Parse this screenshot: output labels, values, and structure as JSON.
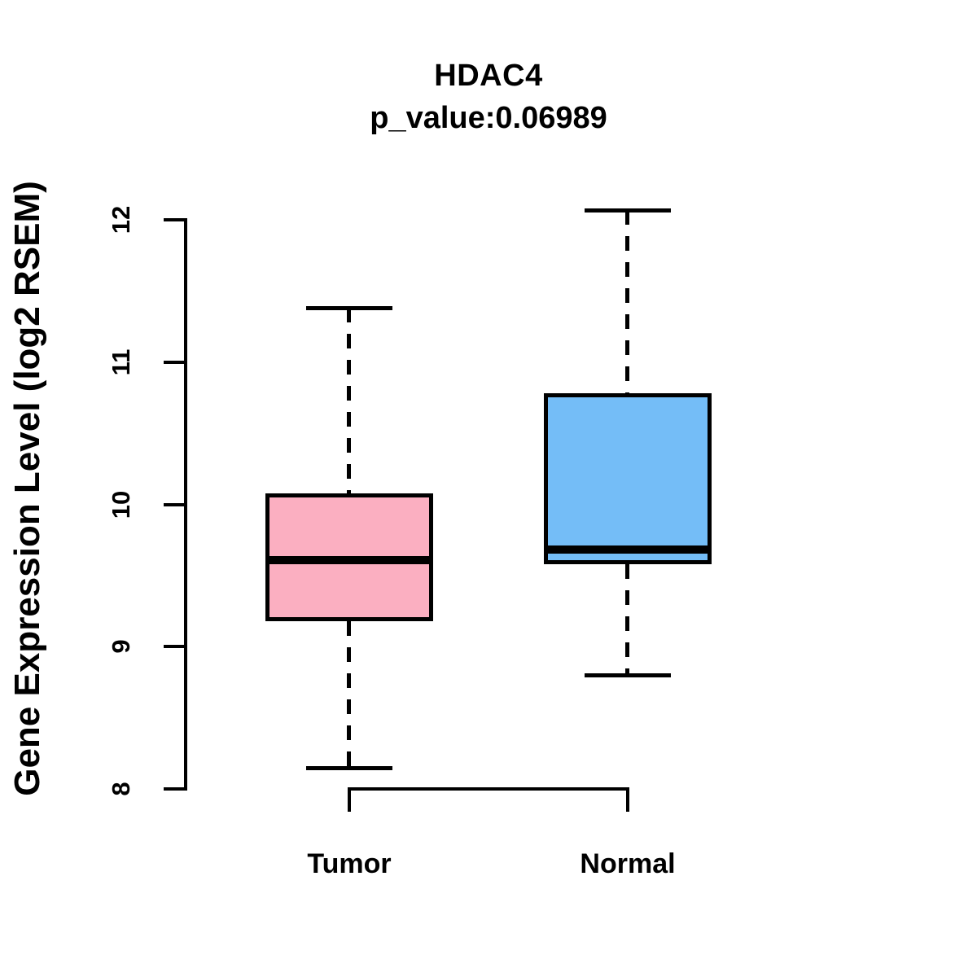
{
  "chart_data": {
    "type": "boxplot",
    "title": "HDAC4",
    "subtitle": "p_value:0.06989",
    "ylabel": "Gene Expression Level (log2 RSEM)",
    "xlabel": "",
    "ylim": [
      8,
      12
    ],
    "yticks": [
      8,
      9,
      10,
      11,
      12
    ],
    "grid": false,
    "legend_position": "none",
    "categories": [
      "Tumor",
      "Normal"
    ],
    "series": [
      {
        "name": "Tumor",
        "color": "#FBAFC1",
        "whisker_low": 8.15,
        "q1": 9.18,
        "median": 9.61,
        "q3": 10.08,
        "whisker_high": 11.38,
        "outliers": []
      },
      {
        "name": "Normal",
        "color": "#74BDF7",
        "whisker_low": 8.8,
        "q1": 9.58,
        "median": 9.68,
        "q3": 10.78,
        "whisker_high": 12.07,
        "outliers": []
      }
    ]
  }
}
